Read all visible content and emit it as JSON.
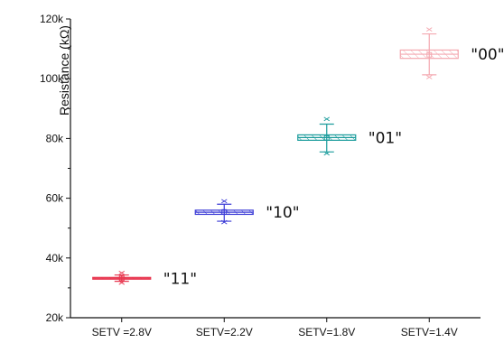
{
  "chart_data": {
    "type": "box",
    "ylabel": "Resistance (kΩ)",
    "ylim": [
      20000,
      120000
    ],
    "y_ticks": [
      20000,
      40000,
      60000,
      80000,
      100000,
      120000
    ],
    "y_tick_labels": [
      "20k",
      "40k",
      "60k",
      "80k",
      "100k",
      "120k"
    ],
    "categories": [
      "SETV =2.8V",
      "SETV=2.2V",
      "SETV=1.8V",
      "SETV=1.4V"
    ],
    "series": [
      {
        "category": "SETV =2.8V",
        "label": "\"11\"",
        "color": "#e8364f",
        "min": 32200,
        "q1": 32900,
        "median": 33200,
        "q3": 33500,
        "max": 34300,
        "mean": 33200,
        "outliers": [
          35000,
          31700
        ]
      },
      {
        "category": "SETV=2.2V",
        "label": "\"10\"",
        "color": "#3b3bd6",
        "min": 52300,
        "q1": 54600,
        "median": 55300,
        "q3": 56000,
        "max": 58000,
        "mean": 55400,
        "outliers": [
          59000,
          52000
        ]
      },
      {
        "category": "SETV=1.8V",
        "label": "\"01\"",
        "color": "#1a9c9c",
        "min": 75500,
        "q1": 79400,
        "median": 80300,
        "q3": 81200,
        "max": 84800,
        "mean": 80200,
        "outliers": [
          86500,
          75000
        ]
      },
      {
        "category": "SETV=1.4V",
        "label": "\"00\"",
        "color": "#f4a8b0",
        "min": 101300,
        "q1": 106800,
        "median": 108200,
        "q3": 109600,
        "max": 115000,
        "mean": 108000,
        "outliers": [
          116500,
          100500
        ]
      }
    ]
  }
}
